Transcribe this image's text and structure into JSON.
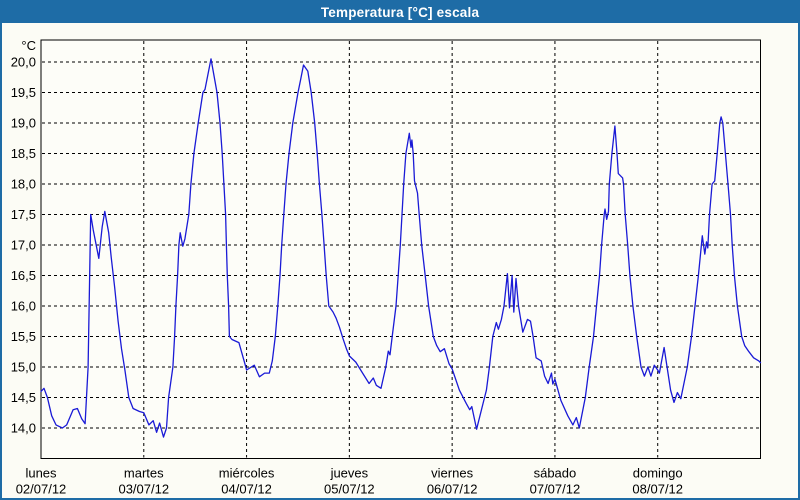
{
  "header": {
    "title": "Temperatura [°C] escala"
  },
  "colors": {
    "frame_blue": "#1e6ca6",
    "title_text": "#ffffff",
    "background": "#fcfcf5",
    "plot_background": "#fdfdf8",
    "grid_black": "#000000",
    "series_blue": "#1a1ad6"
  },
  "chart_data": {
    "type": "line",
    "title": "Temperatura [°C] escala",
    "y_unit_label": "°C",
    "ylabel": "Temperatura",
    "xlabel": "",
    "grid": true,
    "grid_style": "dashed",
    "legend_position": "none",
    "ylim": [
      13.5,
      20.36
    ],
    "x_range_hours": [
      0,
      168
    ],
    "y_ticks": [
      {
        "value": 20.0,
        "label": "20,0"
      },
      {
        "value": 19.5,
        "label": "19,5"
      },
      {
        "value": 19.0,
        "label": "19,0"
      },
      {
        "value": 18.5,
        "label": "18,5"
      },
      {
        "value": 18.0,
        "label": "18,0"
      },
      {
        "value": 17.5,
        "label": "17,5"
      },
      {
        "value": 17.0,
        "label": "17,0"
      },
      {
        "value": 16.5,
        "label": "16,5"
      },
      {
        "value": 16.0,
        "label": "16,0"
      },
      {
        "value": 15.5,
        "label": "15,5"
      },
      {
        "value": 15.0,
        "label": "15,0"
      },
      {
        "value": 14.5,
        "label": "14,5"
      },
      {
        "value": 14.0,
        "label": "14,0"
      }
    ],
    "x_days": [
      {
        "name": "lunes",
        "date": "02/07/12",
        "start_hour": 0
      },
      {
        "name": "martes",
        "date": "03/07/12",
        "start_hour": 24
      },
      {
        "name": "miércoles",
        "date": "04/07/12",
        "start_hour": 48
      },
      {
        "name": "jueves",
        "date": "05/07/12",
        "start_hour": 72
      },
      {
        "name": "viernes",
        "date": "06/07/12",
        "start_hour": 96
      },
      {
        "name": "sábado",
        "date": "07/07/12",
        "start_hour": 120
      },
      {
        "name": "domingo",
        "date": "08/07/12",
        "start_hour": 144
      }
    ],
    "series": [
      {
        "name": "Temperatura [°C]",
        "color": "#1a1ad6",
        "points": [
          [
            0,
            14.6
          ],
          [
            0.7,
            14.65
          ],
          [
            1.5,
            14.5
          ],
          [
            2.5,
            14.2
          ],
          [
            3.5,
            14.05
          ],
          [
            5,
            14
          ],
          [
            6,
            14.05
          ],
          [
            7.5,
            14.3
          ],
          [
            8.5,
            14.32
          ],
          [
            9.5,
            14.15
          ],
          [
            10.3,
            14.07
          ],
          [
            11,
            15
          ],
          [
            11.6,
            17.5
          ],
          [
            12.2,
            17.25
          ],
          [
            13.5,
            16.78
          ],
          [
            14.3,
            17.3
          ],
          [
            14.9,
            17.55
          ],
          [
            15.8,
            17.2
          ],
          [
            16.4,
            16.8
          ],
          [
            17.2,
            16.3
          ],
          [
            18,
            15.75
          ],
          [
            18.8,
            15.3
          ],
          [
            19.6,
            14.95
          ],
          [
            20.5,
            14.5
          ],
          [
            21.5,
            14.32
          ],
          [
            23,
            14.27
          ],
          [
            24,
            14.25
          ],
          [
            25.2,
            14.05
          ],
          [
            26.2,
            14.12
          ],
          [
            27,
            13.93
          ],
          [
            27.7,
            14.08
          ],
          [
            28.6,
            13.85
          ],
          [
            29.3,
            14
          ],
          [
            29.8,
            14.5
          ],
          [
            30.8,
            15
          ],
          [
            31.2,
            15.5
          ],
          [
            31.5,
            16
          ],
          [
            31.9,
            16.5
          ],
          [
            32.2,
            17
          ],
          [
            32.5,
            17.2
          ],
          [
            33.1,
            16.98
          ],
          [
            33.6,
            17.1
          ],
          [
            34.5,
            17.5
          ],
          [
            35,
            18
          ],
          [
            35.7,
            18.5
          ],
          [
            36.7,
            19
          ],
          [
            37.8,
            19.5
          ],
          [
            38.3,
            19.55
          ],
          [
            39.7,
            20.05
          ],
          [
            41.1,
            19.5
          ],
          [
            41.8,
            19
          ],
          [
            42.3,
            18.5
          ],
          [
            42.7,
            18
          ],
          [
            43.1,
            17.5
          ],
          [
            43.3,
            17
          ],
          [
            43.5,
            16.5
          ],
          [
            43.8,
            16
          ],
          [
            44,
            15.5
          ],
          [
            44.6,
            15.45
          ],
          [
            46.2,
            15.4
          ],
          [
            47.7,
            15.03
          ],
          [
            48,
            14.95
          ],
          [
            49.8,
            15.03
          ],
          [
            51,
            14.84
          ],
          [
            52.2,
            14.9
          ],
          [
            53.3,
            14.9
          ],
          [
            54,
            15.1
          ],
          [
            54.7,
            15.5
          ],
          [
            55.3,
            16
          ],
          [
            55.8,
            16.5
          ],
          [
            56.2,
            17
          ],
          [
            56.7,
            17.5
          ],
          [
            57.2,
            18
          ],
          [
            57.9,
            18.5
          ],
          [
            58.8,
            19
          ],
          [
            60,
            19.5
          ],
          [
            60.6,
            19.7
          ],
          [
            61.3,
            19.95
          ],
          [
            62.3,
            19.85
          ],
          [
            63.1,
            19.5
          ],
          [
            63.9,
            19
          ],
          [
            64.5,
            18.5
          ],
          [
            65,
            18
          ],
          [
            65.6,
            17.5
          ],
          [
            66.1,
            17
          ],
          [
            66.6,
            16.5
          ],
          [
            67.2,
            16
          ],
          [
            68.2,
            15.9
          ],
          [
            68.9,
            15.8
          ],
          [
            69.7,
            15.65
          ],
          [
            70.5,
            15.47
          ],
          [
            71.3,
            15.3
          ],
          [
            72,
            15.18
          ],
          [
            73.5,
            15.08
          ],
          [
            75.1,
            14.9
          ],
          [
            76.6,
            14.73
          ],
          [
            77.6,
            14.82
          ],
          [
            78.3,
            14.7
          ],
          [
            79.4,
            14.65
          ],
          [
            80.5,
            15
          ],
          [
            81.1,
            15.26
          ],
          [
            81.5,
            15.2
          ],
          [
            82,
            15.5
          ],
          [
            82.9,
            16
          ],
          [
            83.4,
            16.5
          ],
          [
            83.9,
            17
          ],
          [
            84.3,
            17.5
          ],
          [
            84.7,
            18
          ],
          [
            85.2,
            18.5
          ],
          [
            86,
            18.83
          ],
          [
            86.4,
            18.6
          ],
          [
            86.6,
            18.72
          ],
          [
            86.9,
            18.5
          ],
          [
            87.2,
            18.05
          ],
          [
            87.9,
            17.85
          ],
          [
            88.3,
            17.5
          ],
          [
            88.9,
            17
          ],
          [
            89.7,
            16.5
          ],
          [
            90.5,
            16
          ],
          [
            91.6,
            15.5
          ],
          [
            92.4,
            15.35
          ],
          [
            93.2,
            15.25
          ],
          [
            94.2,
            15.3
          ],
          [
            95.3,
            15.05
          ],
          [
            96,
            14.97
          ],
          [
            97.7,
            14.62
          ],
          [
            99.3,
            14.4
          ],
          [
            100.1,
            14.3
          ],
          [
            100.6,
            14.35
          ],
          [
            101.7,
            13.98
          ],
          [
            103.2,
            14.4
          ],
          [
            104,
            14.62
          ],
          [
            104.7,
            15
          ],
          [
            105.5,
            15.5
          ],
          [
            106.3,
            15.73
          ],
          [
            106.8,
            15.62
          ],
          [
            107.5,
            15.78
          ],
          [
            108.1,
            16
          ],
          [
            108.9,
            16.53
          ],
          [
            109.4,
            15.97
          ],
          [
            110,
            16.5
          ],
          [
            110.4,
            15.9
          ],
          [
            110.9,
            16.45
          ],
          [
            111.5,
            16
          ],
          [
            112.5,
            15.57
          ],
          [
            113.6,
            15.78
          ],
          [
            114.3,
            15.75
          ],
          [
            114.9,
            15.5
          ],
          [
            115.6,
            15.15
          ],
          [
            116.8,
            15.1
          ],
          [
            117.6,
            14.85
          ],
          [
            118.4,
            14.73
          ],
          [
            119.2,
            14.9
          ],
          [
            119.5,
            14.72
          ],
          [
            120,
            14.8
          ],
          [
            121.4,
            14.45
          ],
          [
            123,
            14.2
          ],
          [
            124.2,
            14.05
          ],
          [
            125,
            14.17
          ],
          [
            125.7,
            14
          ],
          [
            127.1,
            14.5
          ],
          [
            128,
            15
          ],
          [
            129,
            15.5
          ],
          [
            129.7,
            16
          ],
          [
            130.4,
            16.5
          ],
          [
            130.9,
            17
          ],
          [
            131.5,
            17.5
          ],
          [
            131.7,
            17.59
          ],
          [
            132.1,
            17.42
          ],
          [
            132.5,
            17.55
          ],
          [
            132.7,
            18
          ],
          [
            133.3,
            18.5
          ],
          [
            134,
            18.95
          ],
          [
            134.5,
            18.5
          ],
          [
            134.8,
            18.17
          ],
          [
            135.8,
            18.1
          ],
          [
            136,
            18
          ],
          [
            136.4,
            17.5
          ],
          [
            137,
            17
          ],
          [
            137.5,
            16.5
          ],
          [
            138.2,
            16
          ],
          [
            139.1,
            15.5
          ],
          [
            140.1,
            15
          ],
          [
            140.9,
            14.85
          ],
          [
            141.7,
            15
          ],
          [
            142.4,
            14.85
          ],
          [
            143.2,
            15.03
          ],
          [
            144,
            14.95
          ],
          [
            144.4,
            14.9
          ],
          [
            145.5,
            15.32
          ],
          [
            147,
            14.62
          ],
          [
            147.8,
            14.42
          ],
          [
            148.6,
            14.58
          ],
          [
            149.4,
            14.48
          ],
          [
            150.9,
            15
          ],
          [
            151.9,
            15.5
          ],
          [
            152.7,
            16
          ],
          [
            153.5,
            16.5
          ],
          [
            154.2,
            17
          ],
          [
            154.4,
            17.15
          ],
          [
            155,
            16.85
          ],
          [
            155.4,
            17.05
          ],
          [
            155.7,
            16.95
          ],
          [
            156.1,
            17.5
          ],
          [
            156.7,
            18
          ],
          [
            157.3,
            18.05
          ],
          [
            157.9,
            18.5
          ],
          [
            158.5,
            19
          ],
          [
            158.8,
            19.1
          ],
          [
            159.2,
            19
          ],
          [
            159.8,
            18.5
          ],
          [
            160.4,
            18
          ],
          [
            161,
            17.5
          ],
          [
            161.4,
            17
          ],
          [
            161.9,
            16.5
          ],
          [
            162.6,
            16
          ],
          [
            163.6,
            15.5
          ],
          [
            164.3,
            15.35
          ],
          [
            165.3,
            15.25
          ],
          [
            166.4,
            15.15
          ],
          [
            167.6,
            15.1
          ],
          [
            168,
            15.07
          ]
        ]
      }
    ]
  }
}
